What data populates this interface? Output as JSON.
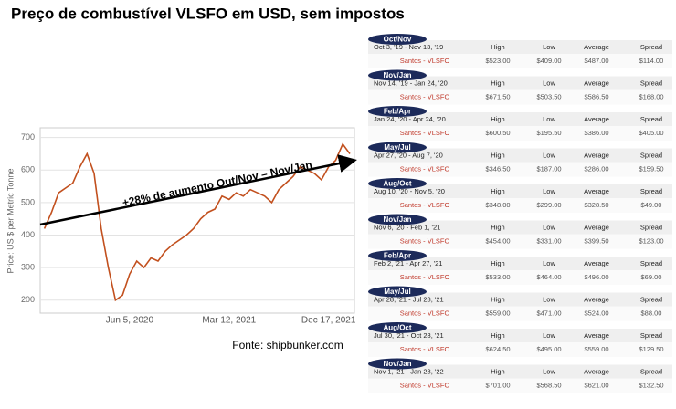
{
  "chart_data": {
    "type": "line",
    "title": "Preço de combustível VLSFO em USD, sem impostos",
    "y_label": "Price: US $ per Metric Tonne",
    "annotation": "+28% de aumento Out/Nov – Nov/Jan",
    "source": "Fonte: shipbunker.com",
    "categories": [
      null,
      null,
      null,
      null,
      null,
      null,
      null,
      null,
      null,
      null,
      null,
      null,
      "Jun 5, 2020",
      null,
      null,
      null,
      null,
      null,
      null,
      null,
      null,
      null,
      null,
      null,
      null,
      null,
      "Mar 12, 2021",
      null,
      null,
      null,
      null,
      null,
      null,
      null,
      null,
      null,
      null,
      null,
      null,
      null,
      "Dec 17, 2021",
      null,
      null,
      null
    ],
    "values": [
      420,
      470,
      530,
      545,
      560,
      610,
      650,
      590,
      420,
      300,
      200,
      215,
      280,
      320,
      300,
      330,
      320,
      350,
      370,
      385,
      400,
      420,
      450,
      470,
      480,
      520,
      510,
      530,
      520,
      540,
      530,
      520,
      500,
      540,
      560,
      580,
      610,
      600,
      590,
      570,
      610,
      630,
      680,
      650
    ],
    "color": "#c2501e",
    "ylim": [
      160,
      730
    ],
    "yticks": [
      200,
      300,
      400,
      500,
      600,
      700
    ],
    "grid": true
  },
  "table": {
    "headers": [
      "High",
      "Low",
      "Average",
      "Spread"
    ],
    "row_label": "Santos - VLSFO",
    "periods": [
      {
        "tag": "Oct/Nov",
        "range": "Oct 3, '19 - Nov 13, '19",
        "values": [
          "$523.00",
          "$409.00",
          "$487.00",
          "$114.00"
        ]
      },
      {
        "tag": "Nov/Jan",
        "range": "Nov 14, '19 - Jan 24, '20",
        "values": [
          "$671.50",
          "$503.50",
          "$586.50",
          "$168.00"
        ]
      },
      {
        "tag": "Feb/Apr",
        "range": "Jan 24, '20 - Apr 24, '20",
        "values": [
          "$600.50",
          "$195.50",
          "$386.00",
          "$405.00"
        ]
      },
      {
        "tag": "May/Jul",
        "range": "Apr 27, '20 - Aug 7, '20",
        "values": [
          "$346.50",
          "$187.00",
          "$286.00",
          "$159.50"
        ]
      },
      {
        "tag": "Aug/Oct",
        "range": "Aug 10, '20 - Nov 5, '20",
        "values": [
          "$348.00",
          "$299.00",
          "$328.50",
          "$49.00"
        ]
      },
      {
        "tag": "Nov/Jan",
        "range": "Nov 6, '20 - Feb 1, '21",
        "values": [
          "$454.00",
          "$331.00",
          "$399.50",
          "$123.00"
        ]
      },
      {
        "tag": "Feb/Apr",
        "range": "Feb 2, '21 - Apr 27, '21",
        "values": [
          "$533.00",
          "$464.00",
          "$496.00",
          "$69.00"
        ]
      },
      {
        "tag": "May/Jul",
        "range": "Apr 28, '21 - Jul 28, '21",
        "values": [
          "$559.00",
          "$471.00",
          "$524.00",
          "$88.00"
        ]
      },
      {
        "tag": "Aug/Oct",
        "range": "Jul 30, '21 - Oct 28, '21",
        "values": [
          "$624.50",
          "$495.00",
          "$559.00",
          "$129.50"
        ]
      },
      {
        "tag": "Nov/Jan",
        "range": "Nov 1, '21 - Jan 28, '22",
        "values": [
          "$701.00",
          "$568.50",
          "$621.00",
          "$132.50"
        ]
      }
    ]
  }
}
